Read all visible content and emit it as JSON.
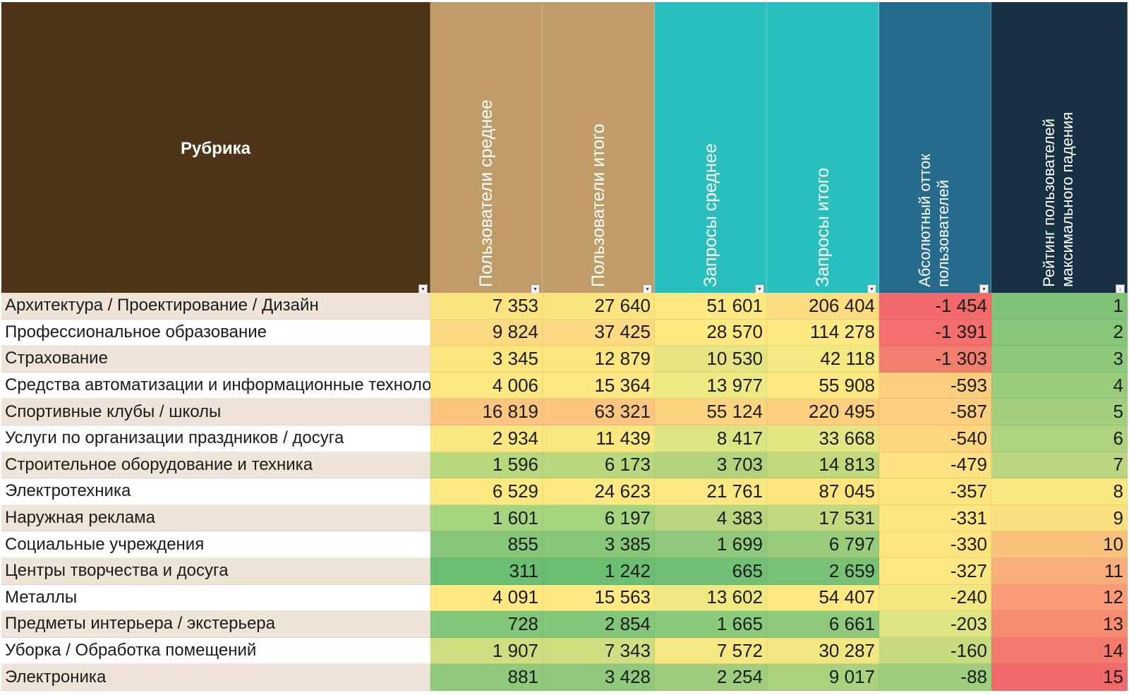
{
  "headers": {
    "rubric": "Рубрика",
    "users_avg": "Пользователи среднее",
    "users_total": "Пользователи итого",
    "queries_avg": "Запросы среднее",
    "queries_total": "Запросы итого",
    "abs_outflow_line1": "Абсолютный отток",
    "abs_outflow_line2": "пользователей",
    "rating_line1": "Рейтинг пользователей",
    "rating_line2": "максимального падения"
  },
  "header_colors": {
    "rubric": "#4e3419",
    "users": "#bf9c68",
    "queries": "#2abfbf",
    "outflow": "#276b8c",
    "rating": "#183142"
  },
  "filter_icons": [
    "dropdown",
    "dropdown",
    "dropdown",
    "dropdown",
    "dropdown",
    "dropdown",
    "sort-descending"
  ],
  "rows": [
    {
      "name": "Архитектура / Проектирование / Дизайн",
      "users_avg": "7 353",
      "users_total": "27 640",
      "queries_avg": "51 601",
      "queries_total": "206 404",
      "outflow": "-1 454",
      "rating": "1",
      "colors": [
        "#fbe47f",
        "#fbe47f",
        "#fde882",
        "#fbdc80",
        "#f26a6a",
        "#7fc477"
      ]
    },
    {
      "name": "Профессиональное образование",
      "users_avg": "9 824",
      "users_total": "37 425",
      "queries_avg": "28 570",
      "queries_total": "114 278",
      "outflow": "-1 391",
      "rating": "2",
      "colors": [
        "#fcd983",
        "#fcd983",
        "#fee980",
        "#fde882",
        "#f36e6d",
        "#86c679"
      ]
    },
    {
      "name": "Страхование",
      "users_avg": "3 345",
      "users_total": "12 879",
      "queries_avg": "10 530",
      "queries_total": "42 118",
      "outflow": "-1 303",
      "rating": "3",
      "colors": [
        "#fbe67f",
        "#fbe67f",
        "#e6e383",
        "#f3e881",
        "#f27e6f",
        "#8dc97b"
      ]
    },
    {
      "name": "Средства автоматизации и информационные технологии",
      "users_avg": "4 006",
      "users_total": "15 364",
      "queries_avg": "13 977",
      "queries_total": "55 908",
      "outflow": "-593",
      "rating": "4",
      "colors": [
        "#fde782",
        "#fde782",
        "#edea83",
        "#fbe880",
        "#fbcd7e",
        "#97cc7c"
      ]
    },
    {
      "name": "Спортивные клубы / школы",
      "users_avg": "16 819",
      "users_total": "63 321",
      "queries_avg": "55 124",
      "queries_total": "220 495",
      "outflow": "-587",
      "rating": "5",
      "colors": [
        "#fbc57f",
        "#fbc57f",
        "#fcd47f",
        "#fcd07f",
        "#fbcf7f",
        "#a3cf7e"
      ]
    },
    {
      "name": "Услуги по организации праздников / досуга",
      "users_avg": "2 934",
      "users_total": "11 439",
      "queries_avg": "8 417",
      "queries_total": "33 668",
      "outflow": "-540",
      "rating": "6",
      "colors": [
        "#f9e880",
        "#f9e880",
        "#dde582",
        "#e5e683",
        "#fcd681",
        "#aed280"
      ]
    },
    {
      "name": "Строительное оборудование и техника",
      "users_avg": "1 596",
      "users_total": "6 173",
      "queries_avg": "3 703",
      "queries_total": "14 813",
      "outflow": "-479",
      "rating": "7",
      "colors": [
        "#b8d87d",
        "#b8d87d",
        "#b2d37e",
        "#c0d97d",
        "#fde181",
        "#bcd680"
      ]
    },
    {
      "name": "Электротехника",
      "users_avg": "6 529",
      "users_total": "24 623",
      "queries_avg": "21 761",
      "queries_total": "87 045",
      "outflow": "-357",
      "rating": "8",
      "colors": [
        "#fde882",
        "#fde882",
        "#fbe882",
        "#fde47f",
        "#fde47f",
        "#f9e882"
      ]
    },
    {
      "name": "Наружная реклама",
      "users_avg": "1 601",
      "users_total": "6 197",
      "queries_avg": "4 383",
      "queries_total": "17 531",
      "outflow": "-331",
      "rating": "9",
      "colors": [
        "#a6d37e",
        "#a6d37e",
        "#b9d67f",
        "#c2d97f",
        "#fde582",
        "#fbe07f"
      ]
    },
    {
      "name": "Социальные учреждения",
      "users_avg": "855",
      "users_total": "3 385",
      "queries_avg": "1 699",
      "queries_total": "6 797",
      "outflow": "-330",
      "rating": "10",
      "colors": [
        "#86c77a",
        "#86c77a",
        "#8fca7c",
        "#98cc7d",
        "#fde47f",
        "#fbc27e"
      ]
    },
    {
      "name": "Центры творчества и досуга",
      "users_avg": "311",
      "users_total": "1 242",
      "queries_avg": "665",
      "queries_total": "2 659",
      "outflow": "-327",
      "rating": "11",
      "colors": [
        "#6cbe72",
        "#6cbe72",
        "#71c076",
        "#78c278",
        "#fde782",
        "#f9ad7b"
      ]
    },
    {
      "name": "Металлы",
      "users_avg": "4 091",
      "users_total": "15 563",
      "queries_avg": "13 602",
      "queries_total": "54 407",
      "outflow": "-240",
      "rating": "12",
      "colors": [
        "#fde982",
        "#fde982",
        "#f0e982",
        "#fde882",
        "#f3e67f",
        "#f89b76"
      ]
    },
    {
      "name": "Предметы интерьера / экстерьера",
      "users_avg": "728",
      "users_total": "2 854",
      "queries_avg": "1 665",
      "queries_total": "6 661",
      "outflow": "-203",
      "rating": "13",
      "colors": [
        "#82c679",
        "#82c679",
        "#8aca7b",
        "#8fca7c",
        "#dee383",
        "#f68c72"
      ]
    },
    {
      "name": "Уборка / Обработка помещений",
      "users_avg": "1 907",
      "users_total": "7 343",
      "queries_avg": "7 572",
      "queries_total": "30 287",
      "outflow": "-160",
      "rating": "14",
      "colors": [
        "#cfde80",
        "#cfde80",
        "#f5e882",
        "#f0e682",
        "#c7db7f",
        "#f47a6d"
      ]
    },
    {
      "name": "Электроника",
      "users_avg": "881",
      "users_total": "3 428",
      "queries_avg": "2 254",
      "queries_total": "9 017",
      "outflow": "-88",
      "rating": "15",
      "colors": [
        "#8fca7c",
        "#8fca7c",
        "#a1ce7e",
        "#aad17e",
        "#9fce7e",
        "#f26a6a"
      ]
    }
  ],
  "row_bg": {
    "odd": "#f0e4d8",
    "even": "#ffffff"
  }
}
